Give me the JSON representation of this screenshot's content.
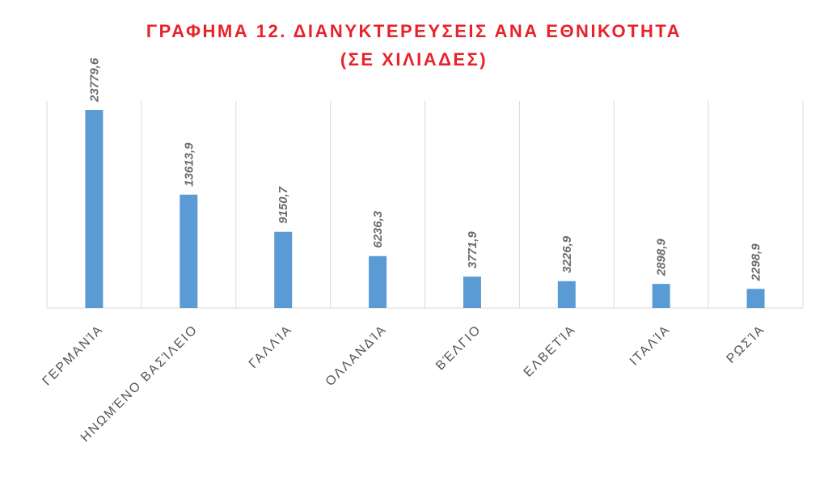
{
  "chart_data": {
    "type": "bar",
    "title": "ΓΡΑΦΗΜΑ 12. ΔΙΑΝΥΚΤΕΡΕΥΣΕΙΣ ΑΝΑ ΕΘΝΙΚΟΤΗΤΑ",
    "subtitle": "(ΣΕ ΧΙΛΙΑΔΕΣ)",
    "categories": [
      "ΓΕΡΜΑΝΊΑ",
      "ΗΝΩΜΈΝΟ ΒΑΣΊΛΕΙΟ",
      "ΓΑΛΛΊΑ",
      "ΟΛΛΑΝΔΊΑ",
      "ΒΈΛΓΙΟ",
      "ΕΛΒΕΤΊΑ",
      "ΙΤΑΛΊΑ",
      "ΡΩΣΊΑ"
    ],
    "values": [
      23779.6,
      13613.9,
      9150.7,
      6236.3,
      3771.9,
      3226.9,
      2898.9,
      2298.9
    ],
    "value_labels": [
      "23779,6",
      "13613,9",
      "9150,7",
      "6236,3",
      "3771,9",
      "3226,9",
      "2898,9",
      "2298,9"
    ],
    "color": "#5b9bd5"
  }
}
